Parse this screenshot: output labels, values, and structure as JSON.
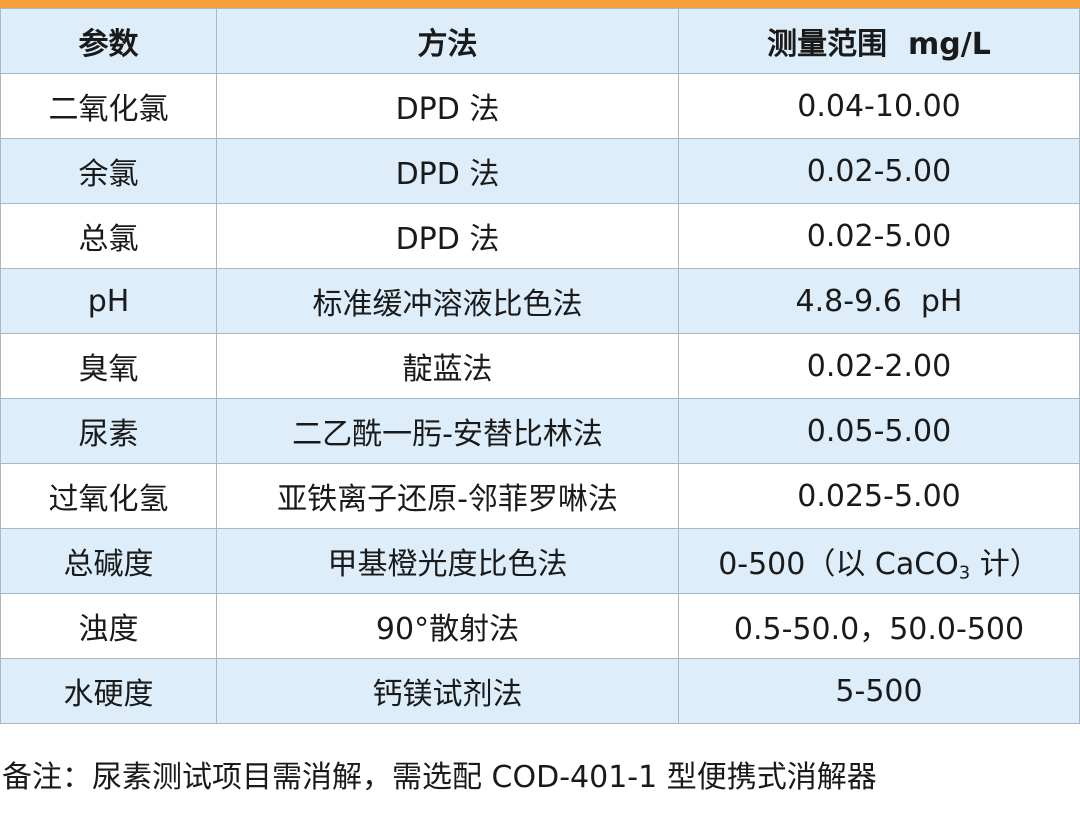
{
  "colors": {
    "accent_bar": "#f5a036",
    "shaded_row": "#ddeefa",
    "plain_row": "#ffffff",
    "grid_line": "#a9b8c6"
  },
  "table": {
    "headers": [
      "参数",
      "方法",
      "测量范围  mg/L"
    ],
    "rows": [
      {
        "param": "二氧化氯",
        "method": "DPD 法",
        "range": "0.04-10.00"
      },
      {
        "param": "余氯",
        "method": "DPD 法",
        "range": "0.02-5.00"
      },
      {
        "param": "总氯",
        "method": "DPD 法",
        "range": "0.02-5.00"
      },
      {
        "param": "pH",
        "method": "标准缓冲溶液比色法",
        "range": "4.8-9.6  pH"
      },
      {
        "param": "臭氧",
        "method": "靛蓝法",
        "range": "0.02-2.00"
      },
      {
        "param": "尿素",
        "method": "二乙酰一肟-安替比林法",
        "range": "0.05-5.00"
      },
      {
        "param": "过氧化氢",
        "method": "亚铁离子还原-邻菲罗啉法",
        "range": "0.025-5.00"
      },
      {
        "param": "总碱度",
        "method": "甲基橙光度比色法",
        "range_prefix": "0-500（以 CaCO",
        "range_sub": "3",
        "range_suffix": " 计）"
      },
      {
        "param": "浊度",
        "method": "90°散射法",
        "range": "0.5-50.0，50.0-500"
      },
      {
        "param": "水硬度",
        "method": "钙镁试剂法",
        "range": "5-500"
      }
    ]
  },
  "footnote": "备注：尿素测试项目需消解，需选配 COD-401-1 型便携式消解器"
}
